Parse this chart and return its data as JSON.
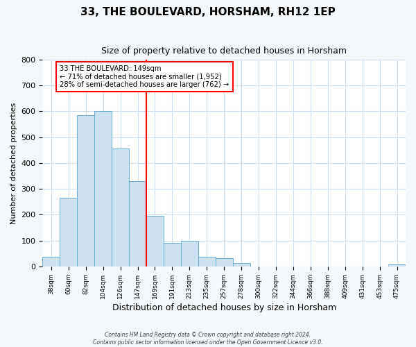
{
  "title": "33, THE BOULEVARD, HORSHAM, RH12 1EP",
  "subtitle": "Size of property relative to detached houses in Horsham",
  "xlabel": "Distribution of detached houses by size in Horsham",
  "ylabel": "Number of detached properties",
  "bin_labels": [
    "38sqm",
    "60sqm",
    "82sqm",
    "104sqm",
    "126sqm",
    "147sqm",
    "169sqm",
    "191sqm",
    "213sqm",
    "235sqm",
    "257sqm",
    "278sqm",
    "300sqm",
    "322sqm",
    "344sqm",
    "366sqm",
    "388sqm",
    "409sqm",
    "431sqm",
    "453sqm",
    "475sqm"
  ],
  "bar_heights": [
    38,
    265,
    585,
    600,
    455,
    330,
    197,
    92,
    100,
    38,
    33,
    14,
    0,
    0,
    0,
    0,
    0,
    0,
    0,
    0,
    8
  ],
  "bar_color": "#cde0f0",
  "bar_edge_color": "#6aaed6",
  "vline_color": "red",
  "vline_x": 5.5,
  "annotation_title": "33 THE BOULEVARD: 149sqm",
  "annotation_line1": "← 71% of detached houses are smaller (1,952)",
  "annotation_line2": "28% of semi-detached houses are larger (762) →",
  "annotation_box_color": "white",
  "annotation_box_edge": "red",
  "ylim": [
    0,
    800
  ],
  "yticks": [
    0,
    100,
    200,
    300,
    400,
    500,
    600,
    700,
    800
  ],
  "footer1": "Contains HM Land Registry data © Crown copyright and database right 2024.",
  "footer2": "Contains public sector information licensed under the Open Government Licence v3.0.",
  "bg_color": "#f5f8fa",
  "plot_bg_color": "white",
  "grid_color": "#ccdded"
}
